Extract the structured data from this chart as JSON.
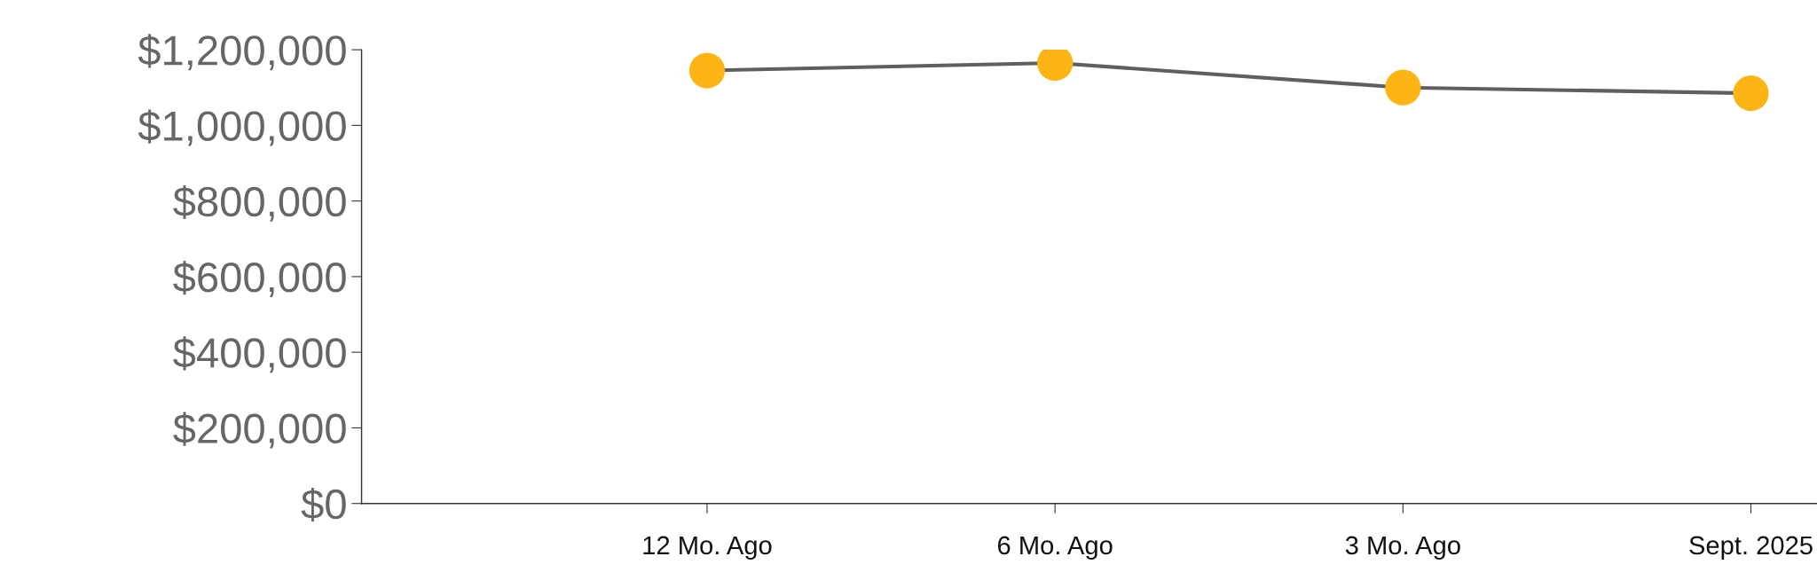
{
  "chart_data": {
    "type": "line",
    "categories": [
      "12 Mo. Ago",
      "6 Mo. Ago",
      "3 Mo. Ago",
      "Sept. 2025"
    ],
    "series": [
      {
        "color": "#5f5f5f",
        "colors": [
          "#fdb515",
          "#fdb515",
          "#fdb515",
          "#fdb515"
        ],
        "values": [
          1145000,
          1165000,
          1100000,
          1085000
        ]
      }
    ],
    "ylim": [
      0,
      1200000
    ],
    "yticks": [
      {
        "value": 0,
        "label": "$0"
      },
      {
        "value": 200000,
        "label": "$200,000"
      },
      {
        "value": 400000,
        "label": "$400,000"
      },
      {
        "value": 600000,
        "label": "$600,000"
      },
      {
        "value": 800000,
        "label": "$800,000"
      },
      {
        "value": 1000000,
        "label": "$1,000,000"
      },
      {
        "value": 1200000,
        "label": "$1,200,000"
      }
    ],
    "marker": "circle",
    "line_style": "solid",
    "grid": false
  }
}
